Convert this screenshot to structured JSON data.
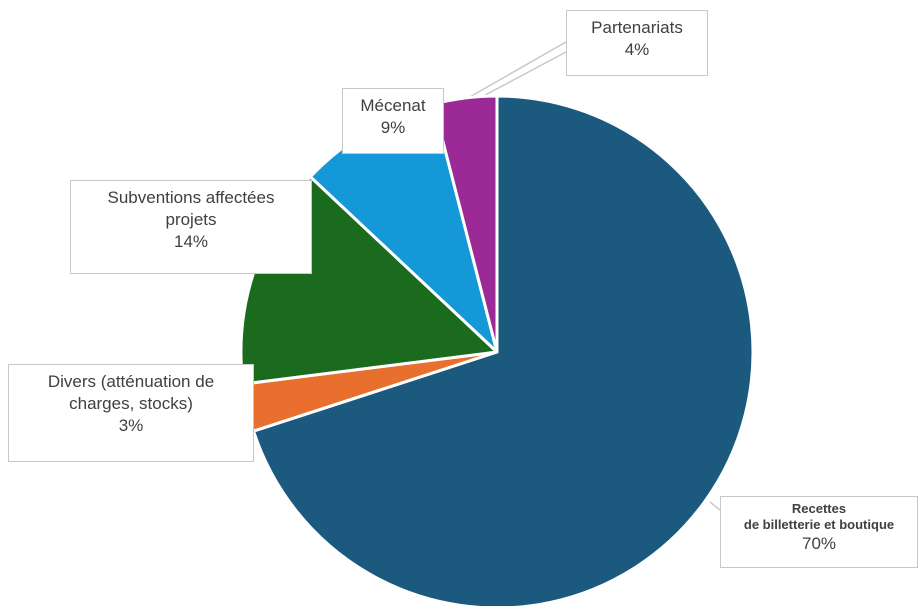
{
  "chart_data": {
    "type": "pie",
    "title": "",
    "start_angle_deg": 0,
    "direction": "clockwise",
    "slices": [
      {
        "label": "Recettes de billetterie et boutique",
        "label_lines": [
          "Recettes",
          "de billetterie et boutique"
        ],
        "value": 70,
        "pct_text": "70%",
        "color": "#1b5a7e"
      },
      {
        "label": "Divers (atténuation de charges, stocks)",
        "label_lines": [
          "Divers (atténuation de",
          "charges, stocks)"
        ],
        "value": 3,
        "pct_text": "3%",
        "color": "#e86f2e"
      },
      {
        "label": "Subventions affectées projets",
        "label_lines": [
          "Subventions affectées",
          "projets"
        ],
        "value": 14,
        "pct_text": "14%",
        "color": "#1b6b1e"
      },
      {
        "label": "Mécenat",
        "label_lines": [
          "Mécenat"
        ],
        "value": 9,
        "pct_text": "9%",
        "color": "#1498d8"
      },
      {
        "label": "Partenariats",
        "label_lines": [
          "Partenariats"
        ],
        "value": 4,
        "pct_text": "4%",
        "color": "#9b2a97"
      }
    ]
  }
}
